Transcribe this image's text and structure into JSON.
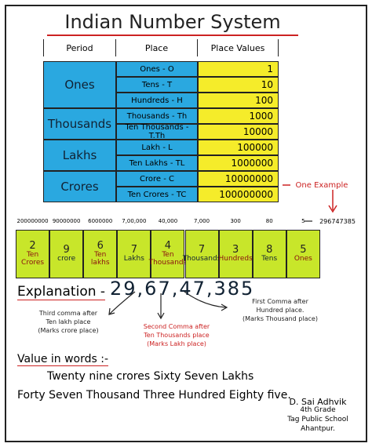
{
  "title": "Indian Number System",
  "table": {
    "headers": [
      "Period",
      "Place",
      "Place Values"
    ],
    "groups": [
      {
        "period": "Ones",
        "rows": [
          {
            "place": "Ones - O",
            "value": "1"
          },
          {
            "place": "Tens - T",
            "value": "10"
          },
          {
            "place": "Hundreds - H",
            "value": "100"
          }
        ]
      },
      {
        "period": "Thousands",
        "rows": [
          {
            "place": "Thousands - Th",
            "value": "1000"
          },
          {
            "place": "Ten Thousands - T.Th",
            "value": "10000"
          }
        ]
      },
      {
        "period": "Lakhs",
        "rows": [
          {
            "place": "Lakh - L",
            "value": "100000"
          },
          {
            "place": "Ten Lakhs - TL",
            "value": "1000000"
          }
        ]
      },
      {
        "period": "Crores",
        "rows": [
          {
            "place": "Crore - C",
            "value": "10000000"
          },
          {
            "place": "Ten Crores - TC",
            "value": "100000000"
          }
        ]
      }
    ]
  },
  "example_label": "One Example",
  "place_values": [
    "200000000",
    "90000000",
    "6000000",
    "7,00,000",
    "40,000",
    "7,000",
    "300",
    "80",
    "5"
  ],
  "place_values_total": "296747385",
  "boxes": [
    {
      "digit": "2",
      "label": "Ten Crores"
    },
    {
      "digit": "9",
      "label": "crore"
    },
    {
      "digit": "6",
      "label": "Ten lakhs"
    },
    {
      "digit": "7",
      "label": "Lakhs"
    },
    {
      "digit": "4",
      "label": "Ten Thousands"
    },
    {
      "digit": "7",
      "label": "Thousands"
    },
    {
      "digit": "3",
      "label": "Hundreds"
    },
    {
      "digit": "8",
      "label": "Tens"
    },
    {
      "digit": "5",
      "label": "Ones"
    }
  ],
  "explanation": {
    "label": "Explanation -",
    "number": "29,67,47,385",
    "notes": [
      [
        "Third comma after",
        "Ten lakh place",
        "(Marks crore place)"
      ],
      [
        "Second Comma after",
        "Ten Thousands place",
        "(Marks Lakh place)"
      ],
      [
        "First Comma after",
        "Hundred place.",
        "(Marks Thousand place)"
      ]
    ]
  },
  "words": {
    "label": "Value in words :-",
    "lines": [
      "Twenty nine crores Sixty Seven Lakhs",
      "Forty Seven Thousand Three Hundred Eighty five."
    ]
  },
  "signature": [
    "D. Sai Adhvik",
    "4th Grade",
    "Tag Public School",
    "Ahantpur."
  ]
}
